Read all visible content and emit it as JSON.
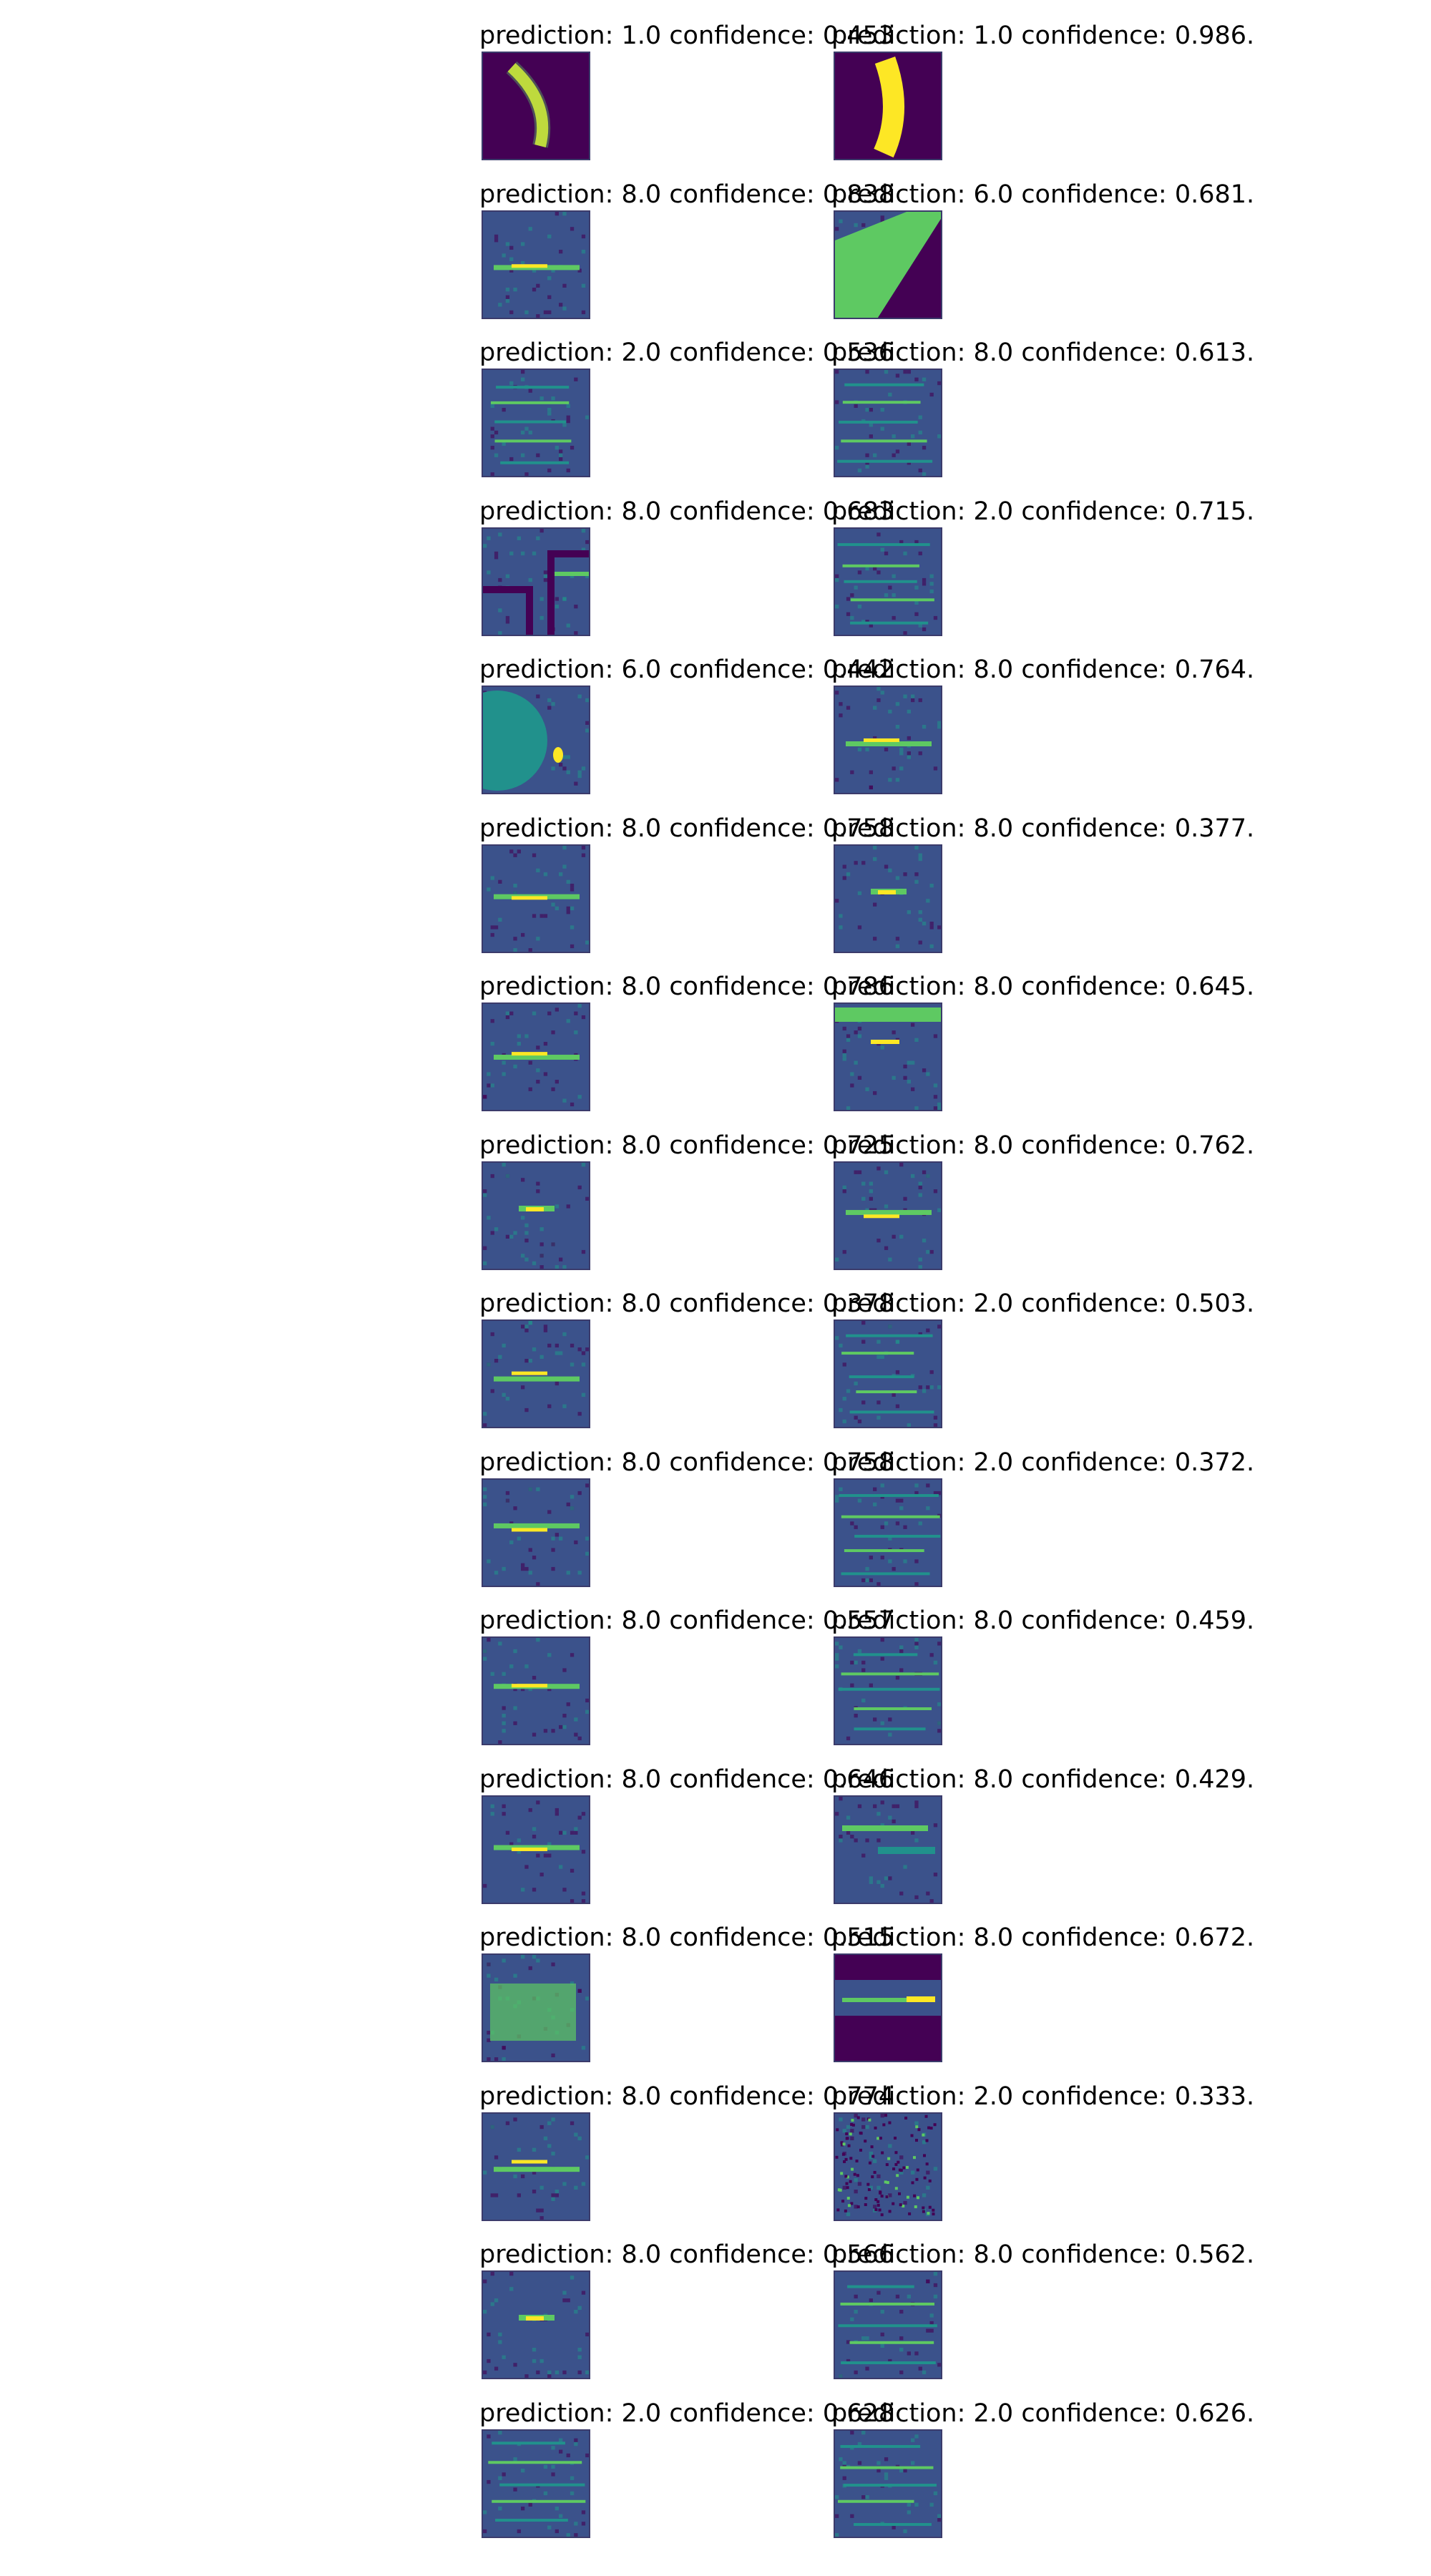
{
  "label_prefix_pred": "prediction:",
  "label_prefix_conf": "confidence:",
  "palette": {
    "bg_dark": "#440154",
    "bg_mid": "#3b528b",
    "teal": "#21918c",
    "green": "#5ec962",
    "yellow": "#fde725"
  },
  "rows": [
    [
      {
        "prediction": "1.0",
        "confidence": "0.453",
        "pattern": "digit-curve"
      },
      {
        "prediction": "1.0",
        "confidence": "0.986.",
        "pattern": "digit-bar"
      }
    ],
    [
      {
        "prediction": "8.0",
        "confidence": "0.838",
        "pattern": "streak"
      },
      {
        "prediction": "6.0",
        "confidence": "0.681.",
        "pattern": "diagonal"
      }
    ],
    [
      {
        "prediction": "2.0",
        "confidence": "0.536",
        "pattern": "multi-streak"
      },
      {
        "prediction": "8.0",
        "confidence": "0.613.",
        "pattern": "multi-streak"
      }
    ],
    [
      {
        "prediction": "8.0",
        "confidence": "0.683",
        "pattern": "frame"
      },
      {
        "prediction": "2.0",
        "confidence": "0.715.",
        "pattern": "multi-streak"
      }
    ],
    [
      {
        "prediction": "6.0",
        "confidence": "0.442",
        "pattern": "blob-dot"
      },
      {
        "prediction": "8.0",
        "confidence": "0.764.",
        "pattern": "streak"
      }
    ],
    [
      {
        "prediction": "8.0",
        "confidence": "0.758",
        "pattern": "streak"
      },
      {
        "prediction": "8.0",
        "confidence": "0.377.",
        "pattern": "dot"
      }
    ],
    [
      {
        "prediction": "8.0",
        "confidence": "0.786",
        "pattern": "streak"
      },
      {
        "prediction": "8.0",
        "confidence": "0.645.",
        "pattern": "bright-top"
      }
    ],
    [
      {
        "prediction": "8.0",
        "confidence": "0.725",
        "pattern": "dot"
      },
      {
        "prediction": "8.0",
        "confidence": "0.762.",
        "pattern": "streak"
      }
    ],
    [
      {
        "prediction": "8.0",
        "confidence": "0.378",
        "pattern": "streak"
      },
      {
        "prediction": "2.0",
        "confidence": "0.503.",
        "pattern": "multi-streak"
      }
    ],
    [
      {
        "prediction": "8.0",
        "confidence": "0.758",
        "pattern": "streak"
      },
      {
        "prediction": "2.0",
        "confidence": "0.372.",
        "pattern": "multi-streak"
      }
    ],
    [
      {
        "prediction": "8.0",
        "confidence": "0.557",
        "pattern": "streak"
      },
      {
        "prediction": "8.0",
        "confidence": "0.459.",
        "pattern": "multi-streak"
      }
    ],
    [
      {
        "prediction": "8.0",
        "confidence": "0.646",
        "pattern": "streak"
      },
      {
        "prediction": "8.0",
        "confidence": "0.429.",
        "pattern": "diagonal-soft"
      }
    ],
    [
      {
        "prediction": "8.0",
        "confidence": "0.515",
        "pattern": "bright-block"
      },
      {
        "prediction": "8.0",
        "confidence": "0.672.",
        "pattern": "dark-band"
      }
    ],
    [
      {
        "prediction": "8.0",
        "confidence": "0.774",
        "pattern": "streak"
      },
      {
        "prediction": "2.0",
        "confidence": "0.333.",
        "pattern": "noise"
      }
    ],
    [
      {
        "prediction": "8.0",
        "confidence": "0.566",
        "pattern": "dot"
      },
      {
        "prediction": "8.0",
        "confidence": "0.562.",
        "pattern": "multi-streak"
      }
    ],
    [
      {
        "prediction": "2.0",
        "confidence": "0.628",
        "pattern": "multi-streak"
      },
      {
        "prediction": "2.0",
        "confidence": "0.626.",
        "pattern": "multi-streak"
      }
    ]
  ]
}
